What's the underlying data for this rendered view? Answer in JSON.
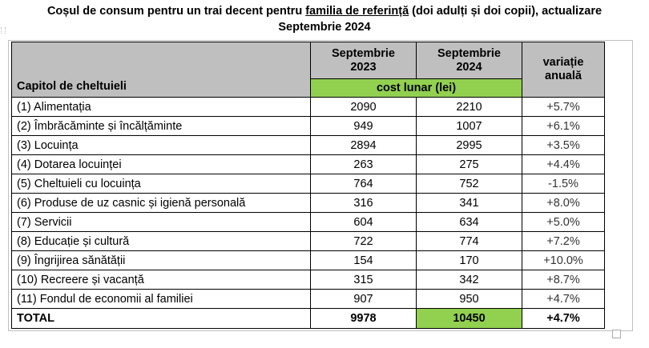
{
  "title": {
    "part1": "Coșul de consum pentru un trai decent pentru ",
    "underlined": "familia de referință",
    "part2": " (doi adulți și doi copii), actualizare",
    "line2": "Septembrie 2024"
  },
  "table": {
    "header": {
      "chapter": "Capitol de cheltuieli",
      "col2023_l1": "Septembrie",
      "col2023_l2": "2023",
      "col2024_l1": "Septembrie",
      "col2024_l2": "2024",
      "cost": "cost lunar (lei)",
      "variation_l1": "variație",
      "variation_l2": "anuală"
    },
    "rows": [
      {
        "label": "(1) Alimentația",
        "v2023": "2090",
        "v2024": "2210",
        "var": "+5.7%"
      },
      {
        "label": "(2) Îmbrăcăminte și încălțăminte",
        "v2023": "949",
        "v2024": "1007",
        "var": "+6.1%"
      },
      {
        "label": "(3) Locuința",
        "v2023": "2894",
        "v2024": "2995",
        "var": "+3.5%"
      },
      {
        "label": "(4) Dotarea locuinței",
        "v2023": "263",
        "v2024": "275",
        "var": "+4.4%"
      },
      {
        "label": "(5) Cheltuieli cu locuința",
        "v2023": "764",
        "v2024": "752",
        "var": "-1.5%"
      },
      {
        "label": "(6) Produse de uz casnic și igienă personală",
        "v2023": "316",
        "v2024": "341",
        "var": "+8.0%"
      },
      {
        "label": "(7) Servicii",
        "v2023": "604",
        "v2024": "634",
        "var": "+5.0%"
      },
      {
        "label": "(8) Educație și cultură",
        "v2023": "722",
        "v2024": "774",
        "var": "+7.2%"
      },
      {
        "label": "(9) Îngrijirea sănătății",
        "v2023": "154",
        "v2024": "170",
        "var": "+10.0%"
      },
      {
        "label": "(10) Recreere și vacanță",
        "v2023": "315",
        "v2024": "342",
        "var": "+8.7%"
      },
      {
        "label": "(11) Fondul de economii al familiei",
        "v2023": "907",
        "v2024": "950",
        "var": "+4.7%"
      }
    ],
    "total": {
      "label": "TOTAL",
      "v2023": "9978",
      "v2024": "10450",
      "var": "+4.7%"
    }
  },
  "colors": {
    "header_gray": "#bfbfbf",
    "accent_green": "#92d050"
  }
}
